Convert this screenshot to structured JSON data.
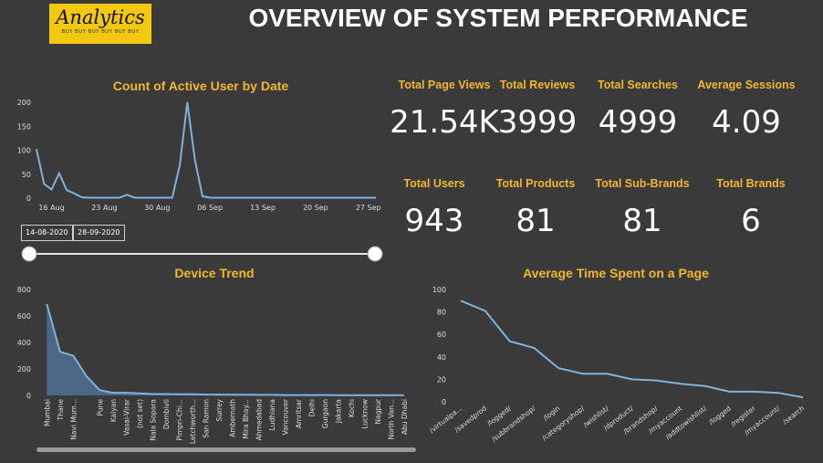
{
  "logo": {
    "title": "Analytics",
    "tagline": "BUY BUY BUY BUY BUY BUY"
  },
  "page_title": "OVERVIEW OF SYSTEM PERFORMANCE",
  "kpis": [
    {
      "label": "Total Page Views",
      "value": "21.54K"
    },
    {
      "label": "Total Reviews",
      "value": "3999"
    },
    {
      "label": "Total Searches",
      "value": "4999"
    },
    {
      "label": "Average Sessions",
      "value": "4.09"
    },
    {
      "label": "Total Users",
      "value": "943"
    },
    {
      "label": "Total Products",
      "value": "81"
    },
    {
      "label": "Total Sub-Brands",
      "value": "81"
    },
    {
      "label": "Total Brands",
      "value": "6"
    }
  ],
  "date_slicer": {
    "start": "14-08-2020",
    "end": "28-09-2020",
    "range_fraction": [
      0,
      1
    ]
  },
  "colors": {
    "accent": "#f2b632",
    "line": "#7fb3dd",
    "area": "#4f6c8f",
    "background": "#3a3a3a"
  },
  "chart_data": [
    {
      "type": "line",
      "title": "Count of Active User by Date",
      "x_ticks": [
        "16 Aug",
        "23 Aug",
        "30 Aug",
        "06 Sep",
        "13 Sep",
        "20 Sep",
        "27 Sep"
      ],
      "x_tick_days": [
        2,
        9,
        16,
        23,
        30,
        37,
        44
      ],
      "y_ticks": [
        0,
        50,
        100,
        150,
        200
      ],
      "ylim": [
        0,
        200
      ],
      "series": [
        {
          "x_day": [
            0,
            1,
            2,
            3,
            4,
            5,
            6,
            7,
            8,
            9,
            10,
            11,
            12,
            13,
            14,
            15,
            16,
            17,
            18,
            19,
            20,
            21,
            22,
            23,
            24,
            25,
            26,
            27,
            28,
            29,
            30,
            31,
            32,
            33,
            34,
            35,
            36,
            37,
            38,
            39,
            40,
            41,
            42,
            43,
            44,
            45
          ],
          "values": [
            102,
            30,
            18,
            52,
            17,
            10,
            2,
            1,
            1,
            1,
            1,
            1,
            7,
            1,
            1,
            1,
            1,
            1,
            1,
            70,
            200,
            80,
            4,
            1,
            1,
            1,
            1,
            1,
            1,
            1,
            1,
            1,
            1,
            1,
            1,
            1,
            1,
            1,
            1,
            1,
            1,
            1,
            1,
            1,
            1,
            1
          ]
        }
      ]
    },
    {
      "type": "area",
      "title": "Device Trend",
      "categories": [
        "Mumbai",
        "Thane",
        "Navi Mum...",
        "",
        "Pune",
        "Kalyan",
        "Vasai-Virar",
        "(not set)",
        "Nala Sopara",
        "Dombivli",
        "Pimpri-Chi...",
        "Letchworth...",
        "San Ramon",
        "Surrey",
        "Ambernath",
        "Mira Bhay...",
        "Ahmedabad",
        "Ludhiana",
        "Vancouver",
        "Amritsar",
        "Delhi",
        "Gurgaon",
        "Jakarta",
        "Kochi",
        "Lucknow",
        "Nagpur",
        "North Van...",
        "Abu Dhabi"
      ],
      "values": [
        690,
        330,
        300,
        145,
        40,
        20,
        20,
        15,
        10,
        10,
        8,
        8,
        6,
        6,
        5,
        5,
        4,
        4,
        3,
        3,
        3,
        3,
        2,
        2,
        2,
        2,
        2,
        2
      ],
      "y_ticks": [
        0,
        200,
        400,
        600,
        800
      ],
      "ylim": [
        0,
        800
      ],
      "scrollbar_fraction": [
        0,
        1
      ]
    },
    {
      "type": "line",
      "title": "Average Time Spent on a Page",
      "categories": [
        "/virtualpa...",
        "/savedprod",
        "/logged/",
        "/subbrandshop/",
        "/login",
        "/categoryshop/",
        "/wishlist/",
        "/dproduct/",
        "/brandshop/",
        "/myaccount",
        "/addtowishlist/",
        "/logged",
        "/register",
        "/myaccount/",
        "/search"
      ],
      "values": [
        90,
        81,
        54,
        48,
        30,
        25,
        25,
        20,
        19,
        16,
        14,
        9,
        9,
        8,
        4
      ],
      "y_ticks": [
        0,
        20,
        40,
        60,
        80,
        100
      ],
      "ylim": [
        0,
        100
      ]
    }
  ]
}
